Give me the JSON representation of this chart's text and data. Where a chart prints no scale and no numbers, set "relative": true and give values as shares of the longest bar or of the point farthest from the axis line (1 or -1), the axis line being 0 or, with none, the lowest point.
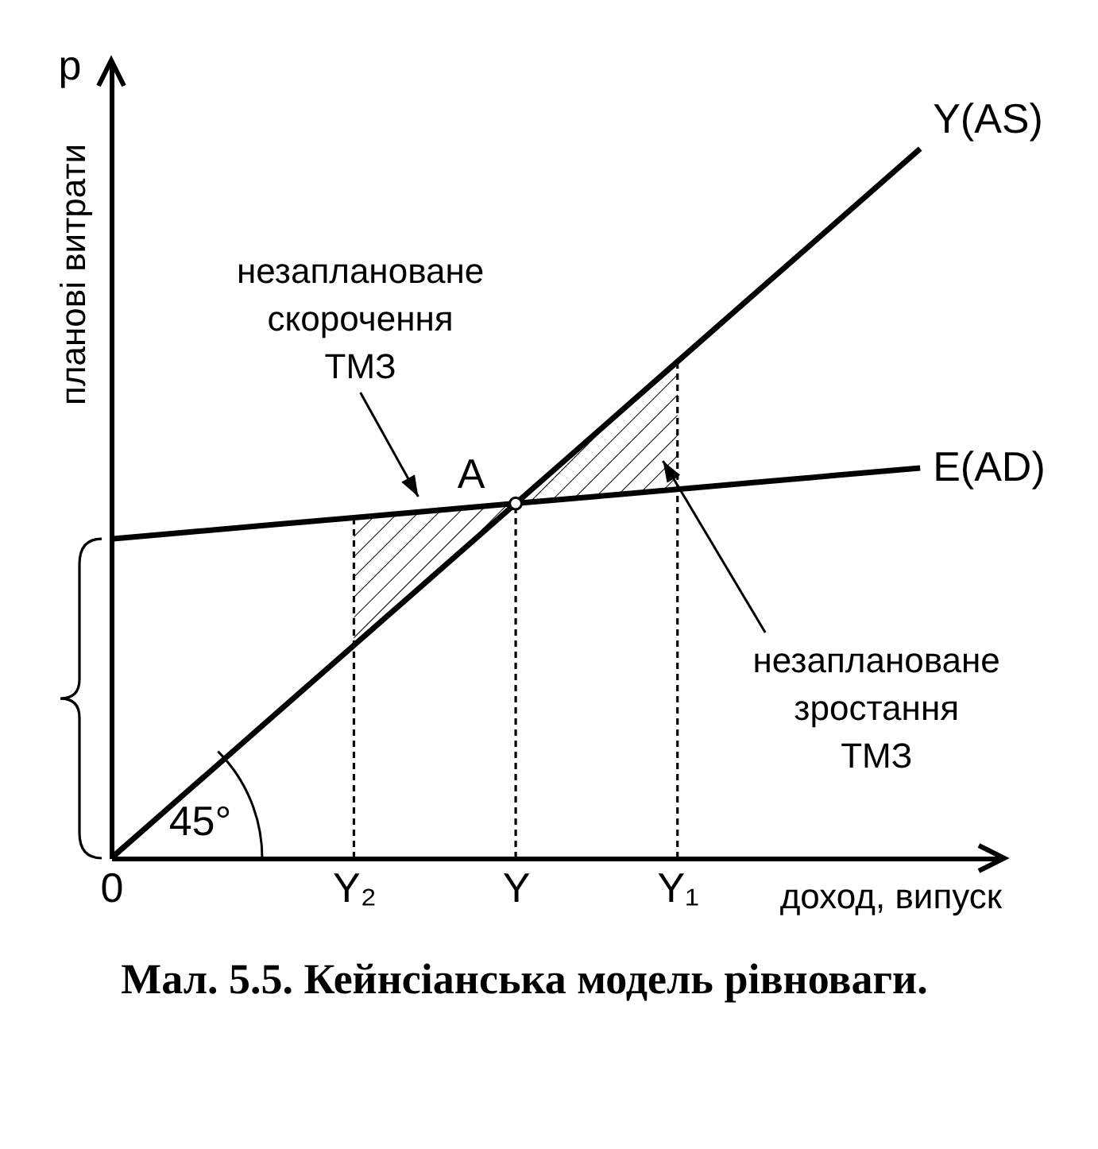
{
  "chart_data": {
    "type": "line",
    "title": "Мал. 5.5. Кейнсіанська модель рівноваги.",
    "xlabel": "доход, випуск",
    "ylabel": "планові витрати",
    "relative": true,
    "categories": [
      "0",
      null,
      null,
      "Y₂",
      null,
      "Y",
      null,
      "Y₁",
      null,
      null,
      null,
      null
    ],
    "series": [
      {
        "name": "Y(AS)",
        "color": "#000000",
        "values": [
          0,
          0.1,
          0.2,
          0.3,
          0.4,
          0.5,
          0.6,
          0.7,
          0.8,
          0.9,
          1,
          null
        ]
      },
      {
        "name": "E(AD)",
        "color": "#000000",
        "values": [
          0.45,
          0.46,
          0.47,
          0.48,
          0.49,
          0.5,
          0.51,
          0.52,
          0.53,
          0.54,
          0.55,
          null
        ]
      },
      {
        "type": "line",
        "line_style": "dashed",
        "color": "#000000",
        "x": [
          "Y₂",
          "Y₂"
        ],
        "values": [
          0,
          0.48
        ]
      },
      {
        "type": "line",
        "line_style": "dashed",
        "color": "#000000",
        "x": [
          "Y",
          "Y"
        ],
        "values": [
          0,
          0.5
        ]
      },
      {
        "type": "line",
        "line_style": "dashed",
        "color": "#000000",
        "x": [
          "Y₁",
          "Y₁"
        ],
        "values": [
          0,
          0.7
        ]
      },
      {
        "type": "scatter",
        "marker": "circle",
        "color": "#ffffff",
        "x": [
          "Y"
        ],
        "values": [
          0.5
        ]
      }
    ],
    "annotations": [
      {
        "text": "A",
        "x": "Y",
        "y": 0.5
      },
      "незаплановане скорочення ТМЗ",
      "незаплановане зростання ТМЗ",
      "45°",
      "р"
    ]
  }
}
